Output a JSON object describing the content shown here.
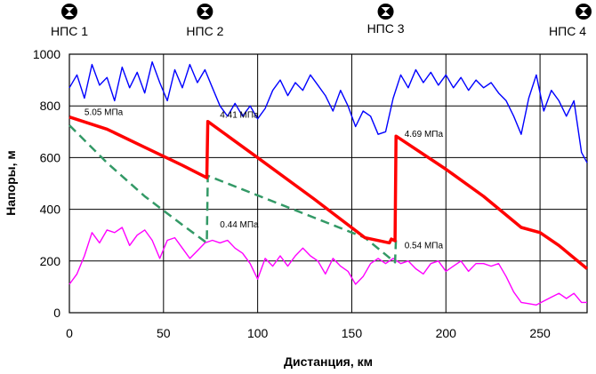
{
  "chart_data": {
    "type": "line",
    "title": "",
    "xlabel": "Дистанция, км",
    "ylabel": "Напоры, м",
    "xlim": [
      0,
      275
    ],
    "ylim": [
      0,
      1000
    ],
    "x_ticks": [
      0,
      50,
      100,
      150,
      200,
      250
    ],
    "y_ticks": [
      0,
      200,
      400,
      600,
      800,
      1000
    ],
    "grid": true,
    "legend": "none",
    "stations": [
      {
        "label": "НПС 1",
        "x": 0
      },
      {
        "label": "НПС 2",
        "x": 72
      },
      {
        "label": "НПС 3",
        "x": 168
      },
      {
        "label": "НПС 4",
        "x": 275
      }
    ],
    "series": [
      {
        "color": "#ff0000",
        "style": "solid",
        "points": [
          [
            0,
            757
          ],
          [
            20,
            710
          ],
          [
            40,
            640
          ],
          [
            60,
            570
          ],
          [
            73,
            522
          ],
          [
            73.5,
            740
          ],
          [
            100,
            600
          ],
          [
            130,
            440
          ],
          [
            157,
            290
          ],
          [
            170,
            270
          ],
          [
            171,
            285
          ],
          [
            173,
            278
          ],
          [
            173.5,
            683
          ],
          [
            200,
            555
          ],
          [
            220,
            450
          ],
          [
            240,
            330
          ],
          [
            250,
            310
          ],
          [
            260,
            260
          ],
          [
            275,
            170
          ]
        ]
      },
      {
        "color": "#339966",
        "style": "dashed",
        "points": [
          [
            0,
            725
          ],
          [
            20,
            580
          ],
          [
            40,
            450
          ],
          [
            60,
            340
          ],
          [
            73,
            270
          ],
          [
            73.5,
            530
          ],
          [
            157,
            290
          ],
          [
            173,
            195
          ],
          [
            173.5,
            290
          ]
        ]
      },
      {
        "color": "#0000ff",
        "style": "solid",
        "points": [
          [
            0,
            870
          ],
          [
            4,
            920
          ],
          [
            8,
            830
          ],
          [
            12,
            960
          ],
          [
            16,
            880
          ],
          [
            20,
            910
          ],
          [
            24,
            820
          ],
          [
            28,
            950
          ],
          [
            32,
            870
          ],
          [
            36,
            930
          ],
          [
            40,
            850
          ],
          [
            44,
            970
          ],
          [
            48,
            890
          ],
          [
            52,
            820
          ],
          [
            56,
            940
          ],
          [
            60,
            870
          ],
          [
            64,
            960
          ],
          [
            68,
            890
          ],
          [
            72,
            940
          ],
          [
            76,
            870
          ],
          [
            80,
            800
          ],
          [
            84,
            760
          ],
          [
            88,
            810
          ],
          [
            92,
            760
          ],
          [
            96,
            800
          ],
          [
            100,
            750
          ],
          [
            104,
            790
          ],
          [
            108,
            860
          ],
          [
            112,
            900
          ],
          [
            116,
            840
          ],
          [
            120,
            890
          ],
          [
            124,
            860
          ],
          [
            128,
            920
          ],
          [
            132,
            880
          ],
          [
            136,
            840
          ],
          [
            140,
            780
          ],
          [
            144,
            860
          ],
          [
            148,
            800
          ],
          [
            152,
            720
          ],
          [
            156,
            780
          ],
          [
            160,
            760
          ],
          [
            164,
            690
          ],
          [
            168,
            700
          ],
          [
            172,
            830
          ],
          [
            176,
            920
          ],
          [
            180,
            870
          ],
          [
            184,
            940
          ],
          [
            188,
            890
          ],
          [
            192,
            930
          ],
          [
            196,
            880
          ],
          [
            200,
            920
          ],
          [
            204,
            870
          ],
          [
            208,
            910
          ],
          [
            212,
            860
          ],
          [
            216,
            900
          ],
          [
            220,
            870
          ],
          [
            224,
            890
          ],
          [
            228,
            850
          ],
          [
            232,
            820
          ],
          [
            236,
            760
          ],
          [
            240,
            690
          ],
          [
            244,
            830
          ],
          [
            248,
            920
          ],
          [
            252,
            780
          ],
          [
            256,
            860
          ],
          [
            260,
            820
          ],
          [
            264,
            760
          ],
          [
            268,
            820
          ],
          [
            272,
            620
          ],
          [
            275,
            580
          ]
        ]
      },
      {
        "color": "#ff00ff",
        "style": "solid",
        "points": [
          [
            0,
            110
          ],
          [
            4,
            150
          ],
          [
            8,
            220
          ],
          [
            12,
            310
          ],
          [
            16,
            270
          ],
          [
            20,
            320
          ],
          [
            24,
            310
          ],
          [
            28,
            330
          ],
          [
            32,
            260
          ],
          [
            36,
            300
          ],
          [
            40,
            320
          ],
          [
            44,
            280
          ],
          [
            48,
            210
          ],
          [
            52,
            280
          ],
          [
            56,
            290
          ],
          [
            60,
            250
          ],
          [
            64,
            210
          ],
          [
            68,
            240
          ],
          [
            72,
            270
          ],
          [
            76,
            280
          ],
          [
            80,
            270
          ],
          [
            84,
            280
          ],
          [
            88,
            250
          ],
          [
            92,
            230
          ],
          [
            96,
            190
          ],
          [
            100,
            130
          ],
          [
            104,
            210
          ],
          [
            108,
            180
          ],
          [
            112,
            220
          ],
          [
            116,
            180
          ],
          [
            120,
            220
          ],
          [
            124,
            250
          ],
          [
            128,
            220
          ],
          [
            132,
            200
          ],
          [
            136,
            150
          ],
          [
            140,
            210
          ],
          [
            144,
            180
          ],
          [
            148,
            160
          ],
          [
            152,
            110
          ],
          [
            156,
            140
          ],
          [
            160,
            190
          ],
          [
            164,
            210
          ],
          [
            168,
            190
          ],
          [
            172,
            210
          ],
          [
            176,
            190
          ],
          [
            180,
            200
          ],
          [
            184,
            170
          ],
          [
            188,
            150
          ],
          [
            192,
            190
          ],
          [
            196,
            200
          ],
          [
            200,
            160
          ],
          [
            204,
            180
          ],
          [
            208,
            200
          ],
          [
            212,
            160
          ],
          [
            216,
            190
          ],
          [
            220,
            190
          ],
          [
            224,
            180
          ],
          [
            228,
            190
          ],
          [
            232,
            140
          ],
          [
            236,
            80
          ],
          [
            240,
            40
          ],
          [
            244,
            35
          ],
          [
            248,
            30
          ],
          [
            252,
            45
          ],
          [
            256,
            60
          ],
          [
            260,
            75
          ],
          [
            264,
            55
          ],
          [
            268,
            75
          ],
          [
            272,
            40
          ],
          [
            275,
            40
          ]
        ]
      }
    ],
    "annotations": [
      {
        "text": "5.05 МПа",
        "x": 8,
        "y": 765
      },
      {
        "text": "4.41 МПа",
        "x": 80,
        "y": 755
      },
      {
        "text": "0.44 МПа",
        "x": 80,
        "y": 330
      },
      {
        "text": "4.69 МПа",
        "x": 178,
        "y": 680
      },
      {
        "text": "0.54 МПа",
        "x": 178,
        "y": 250
      }
    ]
  }
}
